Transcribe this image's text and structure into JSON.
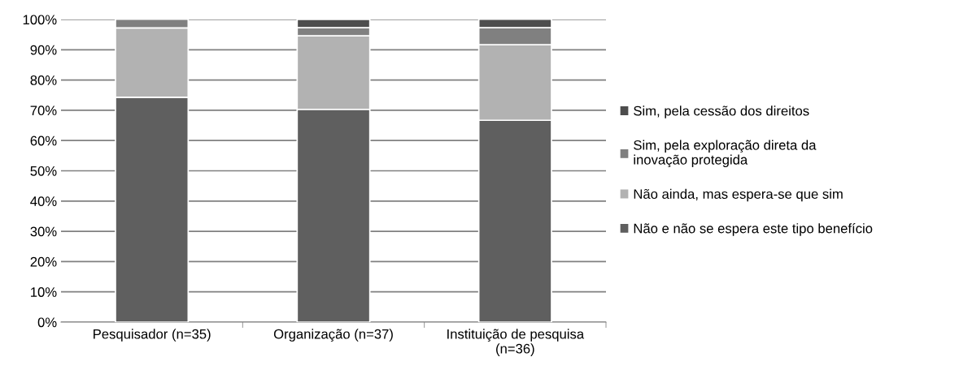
{
  "chart_data": {
    "type": "bar",
    "stacked": true,
    "categories": [
      "Pesquisador (n=35)",
      "Organização (n=37)",
      "Instituição de pesquisa\n(n=36)"
    ],
    "series": [
      {
        "name": "Não e não se espera este tipo benefício",
        "color": "#5f5f5f",
        "values": [
          74.3,
          70.3,
          66.7
        ]
      },
      {
        "name": "Não ainda, mas espera-se que sim",
        "color": "#b2b2b2",
        "values": [
          22.9,
          24.3,
          25.0
        ]
      },
      {
        "name": "Sim, pela exploração direta da\ninovação protegida",
        "color": "#808080",
        "values": [
          2.9,
          2.7,
          5.6
        ]
      },
      {
        "name": "Sim, pela cessão dos direitos",
        "color": "#4d4d4d",
        "values": [
          null,
          2.7,
          2.8
        ]
      }
    ],
    "ylim": [
      0,
      100
    ],
    "yticks": [
      {
        "value": 0,
        "label": "0%"
      },
      {
        "value": 10,
        "label": "10%"
      },
      {
        "value": 20,
        "label": "20%"
      },
      {
        "value": 30,
        "label": "30%"
      },
      {
        "value": 40,
        "label": "40%"
      },
      {
        "value": 50,
        "label": "50%"
      },
      {
        "value": 60,
        "label": "60%"
      },
      {
        "value": 70,
        "label": "70%"
      },
      {
        "value": 80,
        "label": "80%"
      },
      {
        "value": 90,
        "label": "90%"
      },
      {
        "value": 100,
        "label": "100%"
      }
    ],
    "grid": "y",
    "legend": "right"
  }
}
